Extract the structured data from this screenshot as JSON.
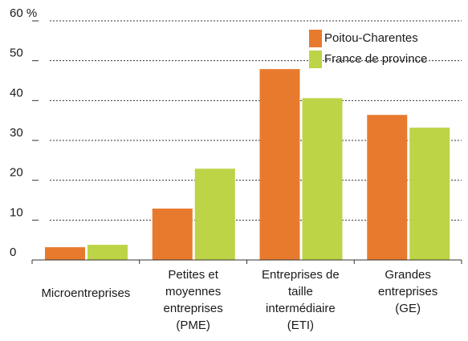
{
  "chart_data": {
    "type": "bar",
    "categories": [
      [
        "Microentreprises"
      ],
      [
        "Petites et",
        "moyennes",
        "entreprises",
        "(PME)"
      ],
      [
        "Entreprises de",
        "taille",
        "intermédiaire",
        "(ETI)"
      ],
      [
        "Grandes",
        "entreprises",
        "(GE)"
      ]
    ],
    "series": [
      {
        "name": "Poitou-Charentes",
        "color": "#e87a2e",
        "values": [
          3.2,
          12.9,
          47.9,
          36.4
        ]
      },
      {
        "name": "France de province",
        "color": "#bcd446",
        "values": [
          3.8,
          22.9,
          40.6,
          33.2
        ]
      }
    ],
    "ylim": [
      0,
      60
    ],
    "yticks": [
      0,
      10,
      20,
      30,
      40,
      50,
      {
        "value": 60,
        "label": "60 %"
      }
    ],
    "grid": true,
    "legend": "top-right"
  }
}
